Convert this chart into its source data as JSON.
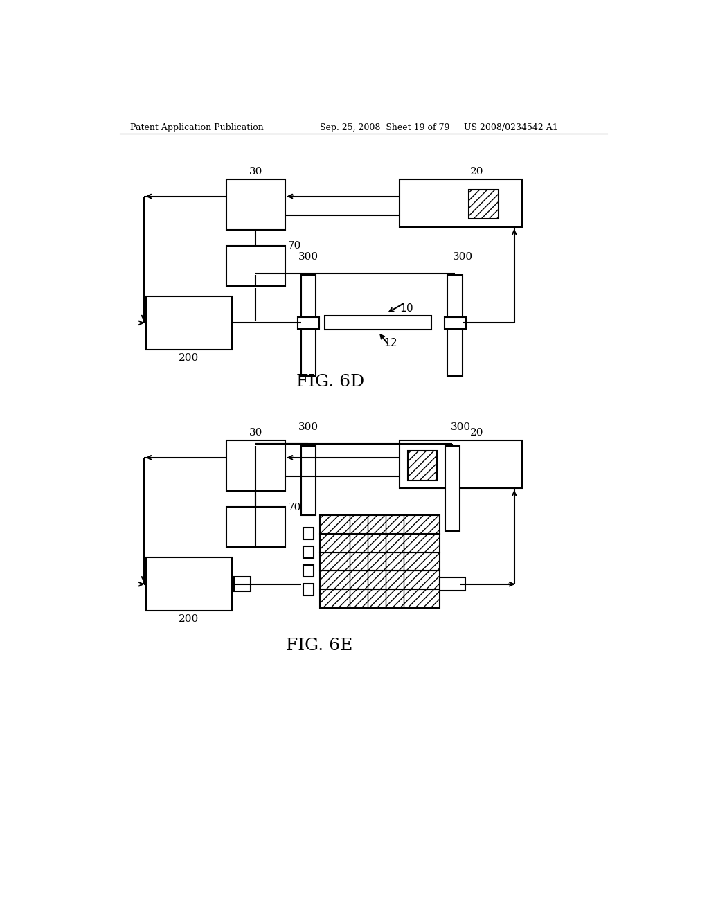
{
  "header_left": "Patent Application Publication",
  "header_mid": "Sep. 25, 2008  Sheet 19 of 79",
  "header_right": "US 2008/0234542 A1",
  "fig6d_label": "FIG. 6D",
  "fig6e_label": "FIG. 6E",
  "bg": "#ffffff",
  "lc": "#000000"
}
